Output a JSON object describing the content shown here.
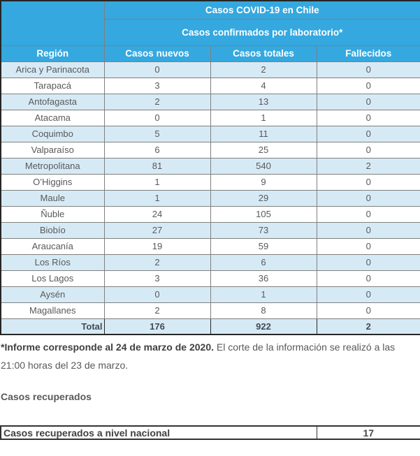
{
  "colors": {
    "header_bg": "#35a8df",
    "alt_row_bg": "#d6eaf6",
    "row_bg": "#ffffff",
    "inner_border": "#7f7f7f",
    "outer_border": "#262626",
    "header_text": "#ffffff",
    "cell_text": "#595959",
    "total_text": "#424a54"
  },
  "main_table": {
    "title": "Casos COVID-19 en Chile",
    "subtitle": "Casos confirmados por laboratorio*",
    "columns": [
      "Región",
      "Casos nuevos",
      "Casos totales",
      "Fallecidos"
    ],
    "rows": [
      {
        "region": "Arica y Parinacota",
        "nuevos": "0",
        "totales": "2",
        "fallecidos": "0"
      },
      {
        "region": "Tarapacá",
        "nuevos": "3",
        "totales": "4",
        "fallecidos": "0"
      },
      {
        "region": "Antofagasta",
        "nuevos": "2",
        "totales": "13",
        "fallecidos": "0"
      },
      {
        "region": "Atacama",
        "nuevos": "0",
        "totales": "1",
        "fallecidos": "0"
      },
      {
        "region": "Coquimbo",
        "nuevos": "5",
        "totales": "11",
        "fallecidos": "0"
      },
      {
        "region": "Valparaíso",
        "nuevos": "6",
        "totales": "25",
        "fallecidos": "0"
      },
      {
        "region": "Metropolitana",
        "nuevos": "81",
        "totales": "540",
        "fallecidos": "2"
      },
      {
        "region": "O’Higgins",
        "nuevos": "1",
        "totales": "9",
        "fallecidos": "0"
      },
      {
        "region": "Maule",
        "nuevos": "1",
        "totales": "29",
        "fallecidos": "0"
      },
      {
        "region": "Ñuble",
        "nuevos": "24",
        "totales": "105",
        "fallecidos": "0"
      },
      {
        "region": "Biobío",
        "nuevos": "27",
        "totales": "73",
        "fallecidos": "0"
      },
      {
        "region": "Araucanía",
        "nuevos": "19",
        "totales": "59",
        "fallecidos": "0"
      },
      {
        "region": "Los Ríos",
        "nuevos": "2",
        "totales": "6",
        "fallecidos": "0"
      },
      {
        "region": "Los Lagos",
        "nuevos": "3",
        "totales": "36",
        "fallecidos": "0"
      },
      {
        "region": "Aysén",
        "nuevos": "0",
        "totales": "1",
        "fallecidos": "0"
      },
      {
        "region": "Magallanes",
        "nuevos": "2",
        "totales": "8",
        "fallecidos": "0"
      }
    ],
    "total": {
      "label": "Total",
      "nuevos": "176",
      "totales": "922",
      "fallecidos": "2"
    }
  },
  "footnote": {
    "bold": "*Informe corresponde al 24 de marzo de 2020.",
    "regular": " El corte de la información se realizó a las 21:00 horas del 23 de marzo."
  },
  "recovered": {
    "heading": "Casos recuperados",
    "label": "Casos recuperados a nivel nacional",
    "value": "17"
  },
  "chart_data": {
    "type": "table",
    "title": "Casos COVID-19 en Chile",
    "subtitle": "Casos confirmados por laboratorio*",
    "columns": [
      "Región",
      "Casos nuevos",
      "Casos totales",
      "Fallecidos"
    ],
    "rows": [
      [
        "Arica y Parinacota",
        0,
        2,
        0
      ],
      [
        "Tarapacá",
        3,
        4,
        0
      ],
      [
        "Antofagasta",
        2,
        13,
        0
      ],
      [
        "Atacama",
        0,
        1,
        0
      ],
      [
        "Coquimbo",
        5,
        11,
        0
      ],
      [
        "Valparaíso",
        6,
        25,
        0
      ],
      [
        "Metropolitana",
        81,
        540,
        2
      ],
      [
        "O’Higgins",
        1,
        9,
        0
      ],
      [
        "Maule",
        1,
        29,
        0
      ],
      [
        "Ñuble",
        24,
        105,
        0
      ],
      [
        "Biobío",
        27,
        73,
        0
      ],
      [
        "Araucanía",
        19,
        59,
        0
      ],
      [
        "Los Ríos",
        2,
        6,
        0
      ],
      [
        "Los Lagos",
        3,
        36,
        0
      ],
      [
        "Aysén",
        0,
        1,
        0
      ],
      [
        "Magallanes",
        2,
        8,
        0
      ]
    ],
    "total": [
      "Total",
      176,
      922,
      2
    ],
    "recovered_national": 17,
    "footnote": "*Informe corresponde al 24 de marzo de 2020. El corte de la información se realizó a las 21:00 horas del 23 de marzo."
  }
}
